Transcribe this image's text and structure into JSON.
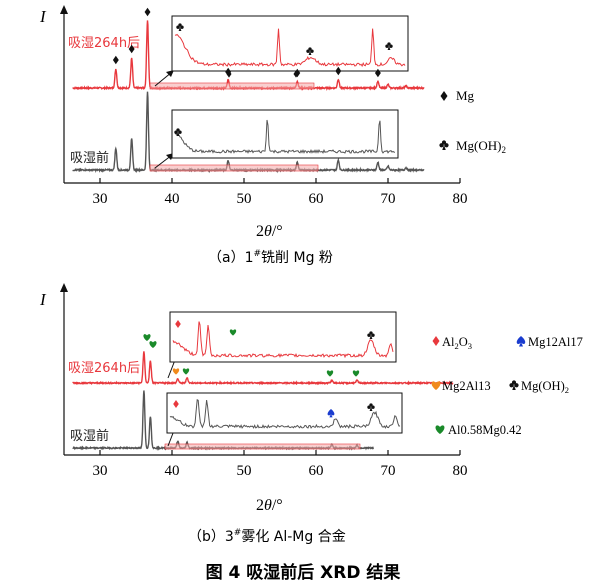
{
  "figure_caption": "图 4   吸湿前后 XRD 结果",
  "chart_data": [
    {
      "type": "line",
      "subcaption": "（a）1#铣削 Mg 粉",
      "sub_prefix": "（a）1",
      "sub_sup": "#",
      "sub_rest": "铣削 Mg 粉",
      "ylabel": "I",
      "xlabel": "2θ/°",
      "xlabel_main": "2",
      "xlabel_theta": "θ",
      "xlabel_unit": "/°",
      "xlim": [
        25,
        80
      ],
      "xticks": [
        "30",
        "40",
        "50",
        "60",
        "70",
        "80"
      ],
      "series": [
        {
          "name": "吸湿264h后",
          "label": "吸湿264h后",
          "color": "#e8383d",
          "peaks": [
            [
              32.2,
              0.28
            ],
            [
              34.4,
              0.44
            ],
            [
              36.6,
              1.0
            ],
            [
              47.8,
              0.12
            ],
            [
              57.4,
              0.1
            ],
            [
              63.1,
              0.13
            ],
            [
              68.6,
              0.1
            ],
            [
              70.0,
              0.05
            ],
            [
              72.5,
              0.03
            ]
          ]
        },
        {
          "name": "吸湿前",
          "label": "吸湿前",
          "color": "#555555",
          "peaks": [
            [
              32.2,
              0.28
            ],
            [
              34.4,
              0.4
            ],
            [
              36.6,
              1.0
            ],
            [
              47.8,
              0.12
            ],
            [
              57.4,
              0.1
            ],
            [
              63.1,
              0.13
            ],
            [
              68.6,
              0.1
            ],
            [
              70.0,
              0.05
            ],
            [
              72.5,
              0.03
            ]
          ]
        }
      ],
      "markers_main": [
        {
          "symbol": "diamond",
          "x": 32.2
        },
        {
          "symbol": "diamond",
          "x": 34.4
        },
        {
          "symbol": "diamond",
          "x": 36.6
        },
        {
          "symbol": "diamond",
          "x": 47.8
        },
        {
          "symbol": "diamond",
          "x": 57.4
        },
        {
          "symbol": "diamond",
          "x": 63.1
        },
        {
          "symbol": "diamond",
          "x": 68.6
        }
      ],
      "legend": [
        {
          "symbol": "diamond",
          "label": "Mg",
          "color": "#111111"
        },
        {
          "symbol": "club",
          "label": "Mg(OH)",
          "sub": "2",
          "color": "#111111"
        }
      ]
    },
    {
      "type": "line",
      "subcaption": "（b）3#雾化 Al-Mg 合金",
      "sub_prefix": "（b）3",
      "sub_sup": "#",
      "sub_rest": "雾化 Al-Mg 合金",
      "ylabel": "I",
      "xlabel": "2θ/°",
      "xlabel_main": "2",
      "xlabel_theta": "θ",
      "xlabel_unit": "/°",
      "xlim": [
        25,
        80
      ],
      "xticks": [
        "30",
        "40",
        "50",
        "60",
        "70",
        "80"
      ],
      "series": [
        {
          "name": "吸湿264h后",
          "label": "吸湿264h后",
          "color": "#e8383d",
          "peaks": [
            [
              36.1,
              0.6
            ],
            [
              37.0,
              0.42
            ],
            [
              40.8,
              0.08
            ],
            [
              42.1,
              0.1
            ],
            [
              62.2,
              0.05
            ],
            [
              65.7,
              0.05
            ]
          ]
        },
        {
          "name": "吸湿前",
          "label": "吸湿前",
          "color": "#555555",
          "peaks": [
            [
              36.1,
              1.0
            ],
            [
              37.0,
              0.55
            ],
            [
              40.8,
              0.12
            ],
            [
              42.1,
              0.1
            ],
            [
              62.2,
              0.06
            ],
            [
              65.7,
              0.05
            ]
          ]
        }
      ],
      "legend": [
        {
          "symbol": "diamond",
          "label": "Al",
          "sub": "2",
          "label2": "O",
          "sub2": "3",
          "color": "#e8383d"
        },
        {
          "symbol": "spade",
          "label": "Mg12Al17",
          "color": "#1a3ccf"
        },
        {
          "symbol": "heart",
          "label": "Mg2Al13",
          "color": "#f08a1c"
        },
        {
          "symbol": "club",
          "label": "Mg(OH)",
          "sub": "2",
          "color": "#111111"
        },
        {
          "symbol": "heart",
          "label": "Al0.58Mg0.42",
          "color": "#1a8a2a"
        }
      ]
    }
  ]
}
